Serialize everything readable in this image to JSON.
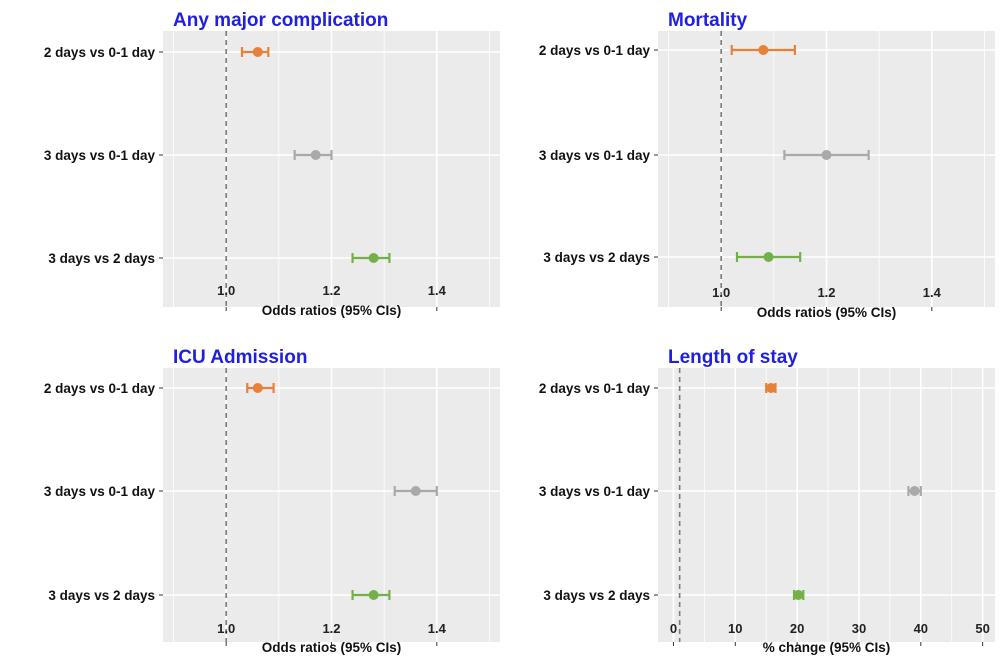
{
  "chart_data": [
    {
      "type": "forest",
      "title": "Any major complication",
      "xlabel": "Odds ratios (95% CIs)",
      "xlim": [
        0.88,
        1.52
      ],
      "ref_line": 1.0,
      "xticks": [
        1.0,
        1.2,
        1.4
      ],
      "xtick_labels": [
        "1.0",
        "1.2",
        "1.4"
      ],
      "grid": true,
      "categories": [
        "2 days vs 0-1 day",
        "3 days vs 0-1 day",
        "3 days vs 2 days"
      ],
      "estimates": [
        1.06,
        1.17,
        1.28
      ],
      "lower": [
        1.03,
        1.13,
        1.24
      ],
      "upper": [
        1.08,
        1.2,
        1.31
      ]
    },
    {
      "type": "forest",
      "title": "Mortality",
      "xlabel": "Odds ratios (95% CIs)",
      "xlim": [
        0.88,
        1.52
      ],
      "ref_line": 1.0,
      "xticks": [
        1.0,
        1.2,
        1.4
      ],
      "xtick_labels": [
        "1.0",
        "1.2",
        "1.4"
      ],
      "grid": true,
      "categories": [
        "2 days vs 0-1 day",
        "3 days vs 0-1 day",
        "3 days vs 2 days"
      ],
      "estimates": [
        1.08,
        1.2,
        1.09
      ],
      "lower": [
        1.02,
        1.12,
        1.03
      ],
      "upper": [
        1.14,
        1.28,
        1.15
      ]
    },
    {
      "type": "forest",
      "title": "ICU Admission",
      "xlabel": "Odds ratios (95% CIs)",
      "xlim": [
        0.88,
        1.52
      ],
      "ref_line": 1.0,
      "xticks": [
        1.0,
        1.2,
        1.4
      ],
      "xtick_labels": [
        "1.0",
        "1.2",
        "1.4"
      ],
      "grid": true,
      "categories": [
        "2 days vs 0-1 day",
        "3 days vs 0-1 day",
        "3 days vs 2 days"
      ],
      "estimates": [
        1.06,
        1.36,
        1.28
      ],
      "lower": [
        1.04,
        1.32,
        1.24
      ],
      "upper": [
        1.09,
        1.4,
        1.31
      ]
    },
    {
      "type": "forest",
      "title": "Length of stay",
      "xlabel": "% change (95% CIs)",
      "xlim": [
        -2.5,
        52
      ],
      "ref_line": 1,
      "xticks": [
        0,
        10,
        20,
        30,
        40,
        50
      ],
      "xtick_labels": [
        "0",
        "10",
        "20",
        "30",
        "40",
        "50"
      ],
      "grid": true,
      "categories": [
        "2 days vs 0-1 day",
        "3 days vs 0-1 day",
        "3 days vs 2 days"
      ],
      "estimates": [
        15.8,
        39,
        20.2
      ],
      "lower": [
        15,
        38,
        19.5
      ],
      "upper": [
        16.5,
        40,
        21
      ]
    }
  ],
  "colors": {
    "panel_background": "#ebebeb",
    "grid_line": "#ffffff",
    "reference_line": "#7a7a7a",
    "title": "#1f1fe0",
    "series": [
      "#e8803a",
      "#a9a9a9",
      "#73b04a"
    ]
  }
}
